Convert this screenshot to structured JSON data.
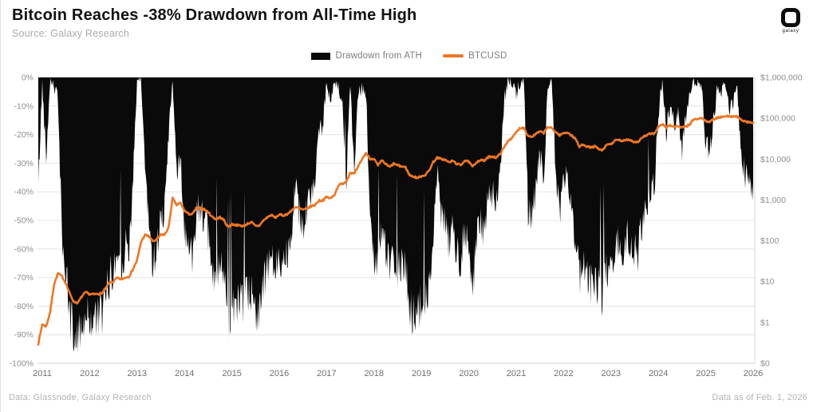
{
  "header": {
    "title": "Bitcoin Reaches -38% Drawdown from All-Time High",
    "subtitle": "Source: Galaxy Research",
    "logo_word": "galaxy"
  },
  "legend": {
    "items": [
      {
        "label": "Drawdown from ATH",
        "color": "#0a0a0a",
        "swatch": "area"
      },
      {
        "label": "BTCUSD",
        "color": "#ee7623",
        "swatch": "line"
      }
    ]
  },
  "footer": {
    "left": "Data: Glassnode, Galaxy Research",
    "right": "Data as of Feb. 1, 2026"
  },
  "chart_data": {
    "type": "line",
    "title": "Bitcoin Reaches -38% Drawdown from All-Time High",
    "x_label": "",
    "x_tick_labels": [
      "2011",
      "2012",
      "2013",
      "2014",
      "2015",
      "2016",
      "2017",
      "2018",
      "2019",
      "2020",
      "2021",
      "2022",
      "2023",
      "2024",
      "2025",
      "2026"
    ],
    "x_start": "2011-01",
    "x_end": "2026-02",
    "x_months": 182,
    "grid": "horizontal",
    "legend_position": "top-center",
    "y_left": {
      "title": "Drawdown from ATH",
      "range": [
        0,
        -100
      ],
      "ticks": [
        "0%",
        "-10%",
        "-20%",
        "-30%",
        "-40%",
        "-50%",
        "-60%",
        "-70%",
        "-80%",
        "-90%",
        "-100%"
      ]
    },
    "y_right": {
      "title": "BTCUSD",
      "scale": "log",
      "ticks": [
        "$1,000,000",
        "$100,000",
        "$10,000",
        "$1,000",
        "$100",
        "$10",
        "$1",
        "$0"
      ]
    },
    "series": [
      {
        "name": "Drawdown from ATH",
        "type": "area",
        "axis": "left",
        "unit": "percent",
        "color": "#0a0a0a",
        "monthly_values": [
          -38,
          -2,
          -28,
          0,
          -3,
          -8,
          -55,
          -70,
          -84,
          -90,
          -93,
          -86,
          -83,
          -85,
          -84,
          -84,
          -83,
          -79,
          -70,
          -68,
          -61,
          -65,
          -60,
          -58,
          -36,
          -2,
          0,
          -30,
          -52,
          -64,
          -60,
          -47,
          -47,
          -20,
          0,
          -35,
          -28,
          -53,
          -61,
          -62,
          -46,
          -45,
          -49,
          -56,
          -67,
          -71,
          -67,
          -72,
          -85,
          -78,
          -79,
          -80,
          -80,
          -77,
          -76,
          -80,
          -80,
          -73,
          -68,
          -63,
          -68,
          -62,
          -64,
          -61,
          -54,
          -38,
          -46,
          -51,
          -48,
          -40,
          -36,
          -17,
          -18,
          -2,
          -8,
          -2,
          -4,
          -10,
          -36,
          -2,
          -35,
          -5,
          -4,
          -6,
          -48,
          -66,
          -65,
          -53,
          -62,
          -68,
          -61,
          -68,
          -66,
          -68,
          -79,
          -84,
          -83,
          -80,
          -79,
          -73,
          -56,
          -31,
          -49,
          -51,
          -58,
          -53,
          -62,
          -63,
          -52,
          -57,
          -75,
          -56,
          -52,
          -53,
          -42,
          -41,
          -45,
          -30,
          -8,
          -1,
          -2,
          -6,
          -2,
          -1,
          -46,
          -48,
          -38,
          -27,
          -35,
          -2,
          -1,
          -33,
          -47,
          -37,
          -34,
          -45,
          -56,
          -71,
          -66,
          -71,
          -72,
          -70,
          -76,
          -76,
          -67,
          -66,
          -59,
          -58,
          -61,
          -56,
          -58,
          -62,
          -61,
          -50,
          -45,
          -39,
          -38,
          -12,
          -2,
          -19,
          -9,
          -16,
          -13,
          -25,
          -15,
          -6,
          -2,
          -3,
          -2,
          -23,
          -25,
          -14,
          -3,
          -5,
          -2,
          -13,
          -8,
          -4,
          -28,
          -34,
          -37,
          -38
        ]
      },
      {
        "name": "BTCUSD",
        "type": "line",
        "axis": "right",
        "unit": "USD",
        "color": "#ee7623",
        "monthly_values": [
          0.3,
          0.9,
          0.8,
          1.8,
          8.7,
          16,
          13.5,
          9,
          5,
          3.2,
          3,
          4.3,
          5.5,
          4.9,
          4.9,
          5,
          5.1,
          6.7,
          9.4,
          10,
          12.4,
          11.2,
          12.6,
          13.4,
          20.4,
          33.4,
          93,
          139,
          128,
          97,
          106,
          141,
          141,
          211,
          1100,
          754,
          842,
          550,
          458,
          446,
          627,
          635,
          589,
          506,
          388,
          338,
          378,
          320,
          217,
          254,
          244,
          236,
          230,
          263,
          284,
          230,
          236,
          314,
          377,
          430,
          368,
          437,
          416,
          448,
          531,
          673,
          624,
          575,
          609,
          700,
          745,
          963,
          970,
          1190,
          1080,
          1350,
          2300,
          2480,
          2875,
          4735,
          4360,
          6450,
          10100,
          14100,
          10200,
          10300,
          6940,
          9240,
          7500,
          6400,
          7730,
          7030,
          6620,
          6320,
          4040,
          3740,
          3460,
          3850,
          4100,
          5320,
          8550,
          10800,
          10100,
          9600,
          8300,
          9150,
          7550,
          7190,
          9350,
          8550,
          6440,
          8620,
          9450,
          9140,
          11350,
          11650,
          10780,
          13800,
          19700,
          29000,
          33100,
          45200,
          58800,
          57750,
          37300,
          35000,
          41500,
          47100,
          43800,
          61300,
          57000,
          46200,
          38500,
          43200,
          45500,
          37700,
          31800,
          19900,
          23300,
          20050,
          19400,
          20500,
          17150,
          16550,
          23100,
          23150,
          28500,
          29250,
          27200,
          30450,
          29230,
          25930,
          26960,
          34650,
          37700,
          42250,
          42580,
          61200,
          71300,
          60600,
          67500,
          62700,
          64600,
          58970,
          63300,
          70200,
          96400,
          93400,
          102400,
          84350,
          82550,
          94200,
          104600,
          107100,
          115800,
          108200,
          114000,
          110100,
          91000,
          83000,
          80000,
          78100
        ]
      }
    ],
    "annotations": {
      "final_drawdown_pct": -38,
      "as_of": "Feb. 1, 2026"
    }
  }
}
